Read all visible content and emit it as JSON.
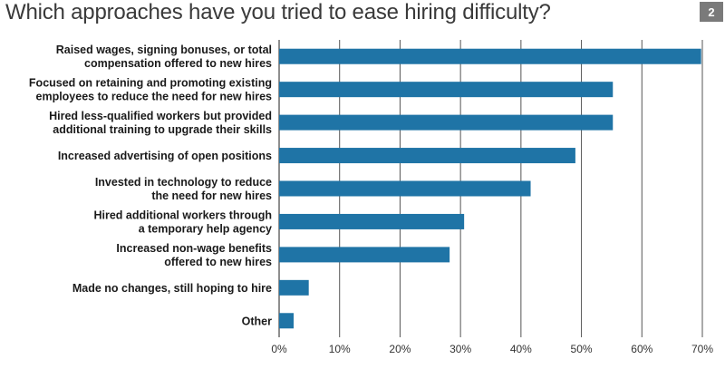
{
  "badge": "2",
  "chart_data": {
    "type": "bar",
    "orientation": "horizontal",
    "title": "Which approaches have you tried to ease hiring difficulty?",
    "categories": [
      [
        "Raised wages, signing bonuses, or total",
        "compensation offered to new hires"
      ],
      [
        "Focused on retaining and promoting existing",
        "employees to reduce the need for new hires"
      ],
      [
        "Hired less-qualified workers but provided",
        "additional training to upgrade their skills"
      ],
      [
        "Increased advertising of open positions"
      ],
      [
        "Invested in technology to reduce",
        "the need for new hires"
      ],
      [
        "Hired additional workers through",
        "a temporary help agency"
      ],
      [
        "Increased non-wage benefits",
        "offered to new hires"
      ],
      [
        "Made no changes, still hoping to hire"
      ],
      [
        "Other"
      ]
    ],
    "values": [
      69.8,
      55.2,
      55.2,
      49.0,
      41.6,
      30.6,
      28.2,
      4.9,
      2.4
    ],
    "xlim": [
      0,
      70
    ],
    "xticks": [
      0,
      10,
      20,
      30,
      40,
      50,
      60,
      70
    ],
    "xtick_labels": [
      "0%",
      "10%",
      "20%",
      "30%",
      "40%",
      "50%",
      "60%",
      "70%"
    ],
    "grid": true,
    "bar_color": "#1f74a6"
  }
}
